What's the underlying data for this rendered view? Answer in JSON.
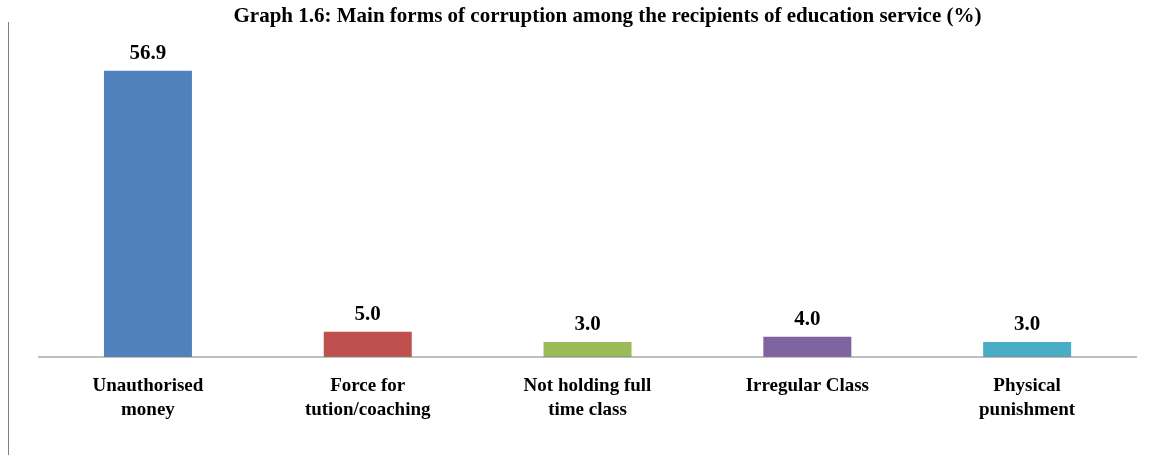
{
  "chart_data": {
    "type": "bar",
    "title": "Graph 1.6: Main forms of corruption among the recipients of education service (%)",
    "categories": [
      "Unauthorised money",
      "Force for tution/coaching",
      "Not holding full time class",
      "Irregular Class",
      "Physical punishment"
    ],
    "values": [
      56.9,
      5.0,
      3.0,
      4.0,
      3.0
    ],
    "colors": [
      "#4f81bd",
      "#c0504d",
      "#9bbb59",
      "#8064a2",
      "#4bacc6"
    ],
    "value_labels": [
      "56.9",
      "5.0",
      "3.0",
      "4.0",
      "3.0"
    ]
  }
}
